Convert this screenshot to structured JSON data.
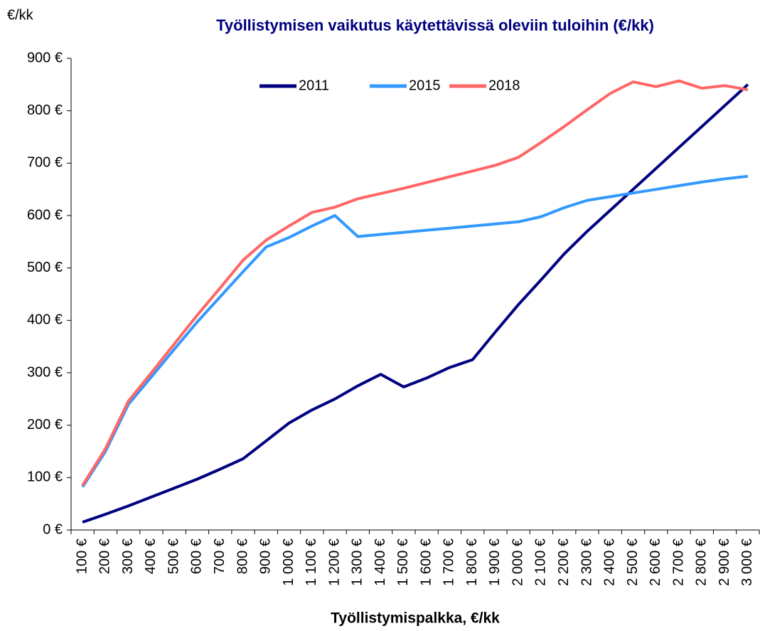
{
  "chart_data": {
    "type": "line",
    "title": "Työllistymisen vaikutus käytettävissä oleviin tuloihin (€/kk)",
    "y_label": "€/kk",
    "x_label": "Työllistymispalkka, €/kk",
    "categories": [
      "100 €",
      "200 €",
      "300 €",
      "400 €",
      "500 €",
      "600 €",
      "700 €",
      "800 €",
      "900 €",
      "1 000 €",
      "1 100 €",
      "1 200 €",
      "1 300 €",
      "1 400 €",
      "1 500 €",
      "1 600 €",
      "1 700 €",
      "1 800 €",
      "1 900 €",
      "2 000 €",
      "2 100 €",
      "2 200 €",
      "2 300 €",
      "2 400 €",
      "2 500 €",
      "2 600 €",
      "2 700 €",
      "2 800 €",
      "2 900 €",
      "3 000 €"
    ],
    "series": [
      {
        "name": "2011",
        "color": "#000080",
        "values": [
          15,
          30,
          46,
          63,
          80,
          97,
          116,
          136,
          170,
          204,
          229,
          250,
          275,
          297,
          273,
          290,
          310,
          325,
          378,
          430,
          478,
          527,
          570,
          610,
          650,
          690,
          730,
          770,
          810,
          850
        ]
      },
      {
        "name": "2015",
        "color": "#3399ff",
        "values": [
          82,
          150,
          240,
          292,
          345,
          397,
          445,
          493,
          540,
          558,
          580,
          600,
          560,
          564,
          568,
          572,
          576,
          580,
          584,
          588,
          598,
          615,
          629,
          636,
          643,
          650,
          657,
          664,
          670,
          675
        ]
      },
      {
        "name": "2018",
        "color": "#ff6666",
        "values": [
          85,
          155,
          246,
          300,
          355,
          410,
          462,
          515,
          553,
          580,
          606,
          616,
          632,
          642,
          652,
          663,
          674,
          685,
          696,
          711,
          740,
          770,
          802,
          833,
          855,
          846,
          857,
          843,
          848,
          840
        ]
      }
    ],
    "ylim": [
      0,
      900
    ],
    "yticks": [
      {
        "value": 0,
        "label": "0 €"
      },
      {
        "value": 100,
        "label": "100 €"
      },
      {
        "value": 200,
        "label": "200 €"
      },
      {
        "value": 300,
        "label": "300 €"
      },
      {
        "value": 400,
        "label": "400 €"
      },
      {
        "value": 500,
        "label": "500 €"
      },
      {
        "value": 600,
        "label": "600 €"
      },
      {
        "value": 700,
        "label": "700 €"
      },
      {
        "value": 800,
        "label": "800 €"
      },
      {
        "value": 900,
        "label": "900 €"
      }
    ],
    "grid": false,
    "legend": "top"
  }
}
